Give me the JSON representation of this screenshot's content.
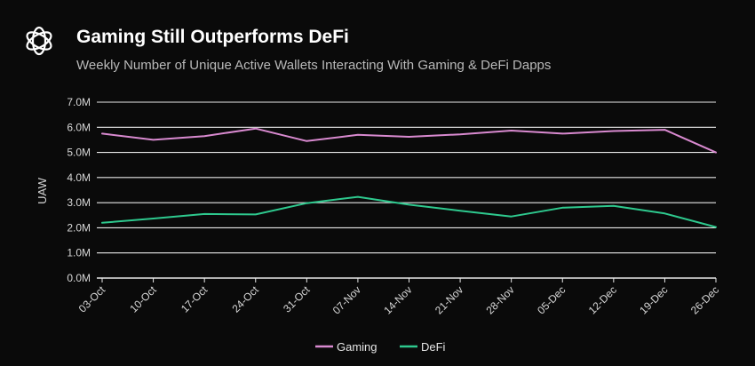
{
  "header": {
    "logo_icon": "flower-logo-icon",
    "title": "Gaming Still Outperforms DeFi",
    "subtitle": "Weekly Number of Unique Active Wallets Interacting With Gaming & DeFi Dapps"
  },
  "chart_data": {
    "type": "line",
    "ylabel": "UAW",
    "xlabel": "",
    "ylim": [
      0,
      7000000
    ],
    "yticks": [
      "0.0M",
      "1.0M",
      "2.0M",
      "3.0M",
      "4.0M",
      "5.0M",
      "6.0M",
      "7.0M"
    ],
    "grid": true,
    "legend_position": "bottom",
    "categories": [
      "03-Oct",
      "10-Oct",
      "17-Oct",
      "24-Oct",
      "31-Oct",
      "07-Nov",
      "14-Nov",
      "21-Nov",
      "28-Nov",
      "05-Dec",
      "12-Dec",
      "19-Dec",
      "26-Dec"
    ],
    "series": [
      {
        "name": "Gaming",
        "color": "#d98ad0",
        "values": [
          5750000,
          5500000,
          5650000,
          5950000,
          5450000,
          5700000,
          5620000,
          5720000,
          5870000,
          5750000,
          5850000,
          5900000,
          5000000
        ]
      },
      {
        "name": "DeFi",
        "color": "#2ec98e",
        "values": [
          2200000,
          2370000,
          2550000,
          2530000,
          2980000,
          3230000,
          2920000,
          2680000,
          2450000,
          2800000,
          2870000,
          2570000,
          2030000
        ]
      }
    ]
  }
}
